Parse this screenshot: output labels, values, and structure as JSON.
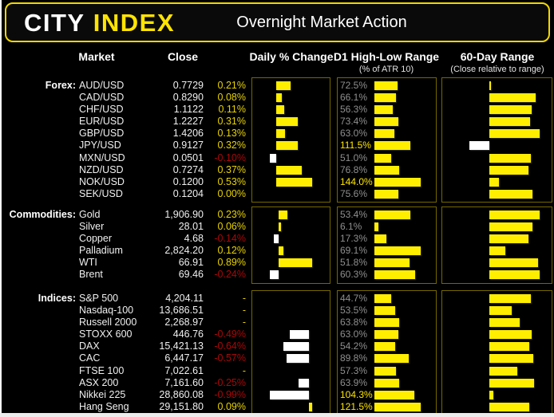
{
  "header": {
    "logo_part1": "CITY",
    "logo_part2": "INDEX",
    "title": "Overnight Market Action"
  },
  "columns": {
    "market": "Market",
    "close": "Close",
    "daily_change": "Daily % Change",
    "d1_range": "D1 High-Low Range",
    "d1_range_sub": "(% of ATR 10)",
    "range_60": "60-Day Range",
    "range_60_sub": "(Close relative to range)"
  },
  "colors": {
    "background": "#000000",
    "accent_yellow": "#ffe400",
    "bar_positive": "#ffee00",
    "bar_negative": "#ffffff",
    "text_positive": "#e8d200",
    "text_negative": "#ad0707",
    "atr_muted": "#8f8f8f",
    "atr_hot": "#ffe600",
    "panel_border": "#756700"
  },
  "chart_data": {
    "type": "table",
    "title": "Overnight Market Action",
    "legend": "Daily % Change bars: yellow = positive, white = negative; D1 High-Low Range as % of ATR 10; 60-Day Range shows close relative to range",
    "sections": [
      {
        "label": "Forex:",
        "rows": [
          {
            "market": "AUD/USD",
            "close": "0.7729",
            "change_label": "0.21%",
            "change_pct": 0.21,
            "atr_label": "72.5%",
            "atr_pct": 72.5,
            "range60": 0.03
          },
          {
            "market": "CAD/USD",
            "close": "0.8290",
            "change_label": "0.08%",
            "change_pct": 0.08,
            "atr_label": "66.1%",
            "atr_pct": 66.1,
            "range60": 0.92
          },
          {
            "market": "CHF/USD",
            "close": "1.1122",
            "change_label": "0.11%",
            "change_pct": 0.11,
            "atr_label": "56.3%",
            "atr_pct": 56.3,
            "range60": 0.84
          },
          {
            "market": "EUR/USD",
            "close": "1.2227",
            "change_label": "0.31%",
            "change_pct": 0.31,
            "atr_label": "73.4%",
            "atr_pct": 73.4,
            "range60": 0.81
          },
          {
            "market": "GBP/USD",
            "close": "1.4206",
            "change_label": "0.13%",
            "change_pct": 0.13,
            "atr_label": "63.0%",
            "atr_pct": 63.0,
            "range60": 1.0
          },
          {
            "market": "JPY/USD",
            "close": "0.9127",
            "change_label": "0.32%",
            "change_pct": 0.32,
            "atr_label": "111.5%",
            "atr_pct": 111.5,
            "range60": -0.4
          },
          {
            "market": "MXN/USD",
            "close": "0.0501",
            "change_label": "-0.10%",
            "change_pct": -0.1,
            "atr_label": "51.0%",
            "atr_pct": 51.0,
            "range60": 0.82
          },
          {
            "market": "NZD/USD",
            "close": "0.7274",
            "change_label": "0.37%",
            "change_pct": 0.37,
            "atr_label": "76.8%",
            "atr_pct": 76.8,
            "range60": 0.77
          },
          {
            "market": "NOK/USD",
            "close": "0.1200",
            "change_label": "0.53%",
            "change_pct": 0.53,
            "atr_label": "144.0%",
            "atr_pct": 144.0,
            "range60": 0.19
          },
          {
            "market": "SEK/USD",
            "close": "0.1204",
            "change_label": "0.00%",
            "change_pct": 0.0,
            "atr_label": "75.6%",
            "atr_pct": 75.6,
            "range60": 0.85
          }
        ]
      },
      {
        "label": "Commodities:",
        "rows": [
          {
            "market": "Gold",
            "close": "1,906.90",
            "change_label": "0.23%",
            "change_pct": 0.23,
            "atr_label": "53.4%",
            "atr_pct": 53.4,
            "range60": 1.0
          },
          {
            "market": "Silver",
            "close": "28.01",
            "change_label": "0.06%",
            "change_pct": 0.06,
            "atr_label": "6.1%",
            "atr_pct": 6.1,
            "range60": 0.86
          },
          {
            "market": "Copper",
            "close": "4.68",
            "change_label": "-0.14%",
            "change_pct": -0.14,
            "atr_label": "17.3%",
            "atr_pct": 17.3,
            "range60": 0.77
          },
          {
            "market": "Palladium",
            "close": "2,824.20",
            "change_label": "0.12%",
            "change_pct": 0.12,
            "atr_label": "69.1%",
            "atr_pct": 69.1,
            "range60": 0.31
          },
          {
            "market": "WTI",
            "close": "66.91",
            "change_label": "0.89%",
            "change_pct": 0.89,
            "atr_label": "51.8%",
            "atr_pct": 51.8,
            "range60": 0.97
          },
          {
            "market": "Brent",
            "close": "69.46",
            "change_label": "-0.24%",
            "change_pct": -0.24,
            "atr_label": "60.3%",
            "atr_pct": 60.3,
            "range60": 1.0
          }
        ]
      },
      {
        "label": "Indices:",
        "rows": [
          {
            "market": "S&P 500",
            "close": "4,204.11",
            "change_label": "-",
            "change_pct": null,
            "atr_label": "44.7%",
            "atr_pct": 44.7,
            "range60": 0.83
          },
          {
            "market": "Nasdaq-100",
            "close": "13,686.51",
            "change_label": "-",
            "change_pct": null,
            "atr_label": "53.5%",
            "atr_pct": 53.5,
            "range60": 0.44
          },
          {
            "market": "Russell 2000",
            "close": "2,268.97",
            "change_label": "-",
            "change_pct": null,
            "atr_label": "63.8%",
            "atr_pct": 63.8,
            "range60": 0.61
          },
          {
            "market": "STOXX 600",
            "close": "446.76",
            "change_label": "-0.49%",
            "change_pct": -0.49,
            "atr_label": "63.0%",
            "atr_pct": 63.0,
            "range60": 0.84
          },
          {
            "market": "DAX",
            "close": "15,421.13",
            "change_label": "-0.64%",
            "change_pct": -0.64,
            "atr_label": "54.2%",
            "atr_pct": 54.2,
            "range60": 0.79
          },
          {
            "market": "CAC",
            "close": "6,447.17",
            "change_label": "-0.57%",
            "change_pct": -0.57,
            "atr_label": "89.8%",
            "atr_pct": 89.8,
            "range60": 0.87
          },
          {
            "market": "FTSE 100",
            "close": "7,022.61",
            "change_label": "-",
            "change_pct": null,
            "atr_label": "57.3%",
            "atr_pct": 57.3,
            "range60": 0.56
          },
          {
            "market": "ASX 200",
            "close": "7,161.60",
            "change_label": "-0.25%",
            "change_pct": -0.25,
            "atr_label": "63.9%",
            "atr_pct": 63.9,
            "range60": 0.89
          },
          {
            "market": "Nikkei 225",
            "close": "28,860.08",
            "change_label": "-0.99%",
            "change_pct": -0.99,
            "atr_label": "104.3%",
            "atr_pct": 104.3,
            "range60": 0.08
          },
          {
            "market": "Hang Seng",
            "close": "29,151.80",
            "change_label": "0.09%",
            "change_pct": 0.09,
            "atr_label": "121.5%",
            "atr_pct": 121.5,
            "range60": 0.8
          }
        ]
      }
    ]
  }
}
